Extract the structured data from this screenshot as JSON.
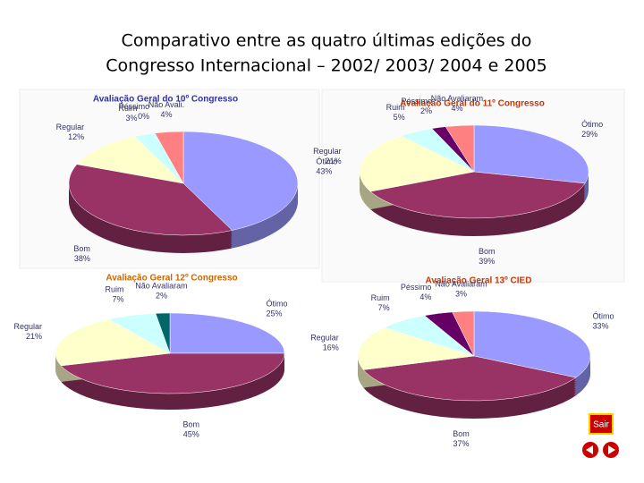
{
  "title_lines": [
    "Comparativo entre as quatro últimas edições do",
    "Congresso Internacional – 2002/ 2003/ 2004 e 2005"
  ],
  "chart_data": [
    {
      "type": "pie",
      "title": "Avaliação Geral do 10º Congresso",
      "title_color": "#333399",
      "categories": [
        "Ótimo",
        "Bom",
        "Regular",
        "Ruim",
        "Péssimo",
        "Não Avali."
      ],
      "values": [
        43,
        38,
        12,
        3,
        0,
        4
      ],
      "value_labels": [
        "43%",
        "38%",
        "12%",
        "3%",
        "0%",
        "4%"
      ],
      "colors": [
        "#9999ff",
        "#993366",
        "#ffffcc",
        "#ccffff",
        "#660066",
        "#ff8080"
      ]
    },
    {
      "type": "pie",
      "title": "Avaliação Geral do 11º Congresso",
      "title_color": "#cc3300",
      "categories": [
        "Ótimo",
        "Bom",
        "Regular",
        "Ruim",
        "Péssimo",
        "Não Avaliaram"
      ],
      "values": [
        29,
        39,
        21,
        5,
        2,
        4
      ],
      "value_labels": [
        "29%",
        "39%",
        "21%",
        "5%",
        "2%",
        "4%"
      ],
      "colors": [
        "#9999ff",
        "#993366",
        "#ffffcc",
        "#ccffff",
        "#660066",
        "#ff8080"
      ]
    },
    {
      "type": "pie",
      "title": "Avaliação Geral 12º Congresso",
      "title_color": "#cc6600",
      "categories": [
        "Ótimo",
        "Bom",
        "Regular",
        "Ruim",
        "Não Avaliaram"
      ],
      "values": [
        25,
        45,
        21,
        7,
        2
      ],
      "value_labels": [
        "25%",
        "45%",
        "21%",
        "7%",
        "2%"
      ],
      "colors": [
        "#9999ff",
        "#993366",
        "#ffffcc",
        "#ccffff",
        "#006666"
      ]
    },
    {
      "type": "pie",
      "title": "Avaliação Geral 13º CIED",
      "title_color": "#cc3300",
      "categories": [
        "Ótimo",
        "Bom",
        "Regular",
        "Ruim",
        "Péssimo",
        "Não Avaliaram"
      ],
      "values": [
        33,
        37,
        16,
        7,
        4,
        3
      ],
      "value_labels": [
        "33%",
        "37%",
        "16%",
        "7%",
        "4%",
        "3%"
      ],
      "colors": [
        "#9999ff",
        "#993366",
        "#ffffcc",
        "#ccffff",
        "#660066",
        "#ff8080"
      ]
    }
  ],
  "exit_button": "Sair"
}
